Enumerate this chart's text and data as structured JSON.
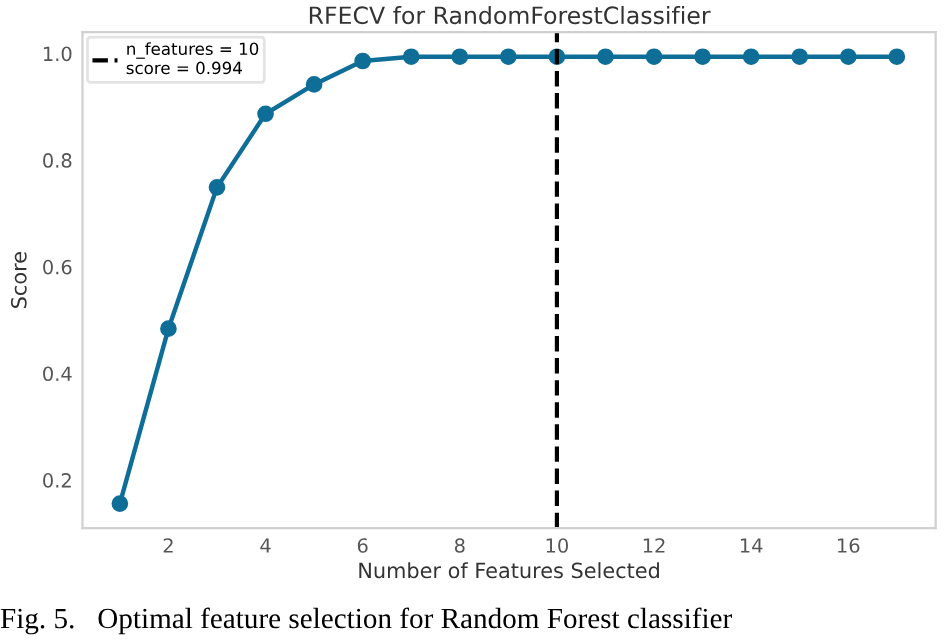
{
  "chart_data": {
    "type": "line",
    "title": "RFECV for RandomForestClassifier",
    "xlabel": "Number of Features Selected",
    "ylabel": "Score",
    "x": [
      1,
      2,
      3,
      4,
      5,
      6,
      7,
      8,
      9,
      10,
      11,
      12,
      13,
      14,
      15,
      16,
      17
    ],
    "series": [
      {
        "color": "#0e6e97",
        "values": [
          0.156,
          0.484,
          0.749,
          0.887,
          0.942,
          0.986,
          0.994,
          0.994,
          0.994,
          0.994,
          0.994,
          0.994,
          0.994,
          0.994,
          0.994,
          0.994,
          0.994
        ]
      }
    ],
    "marker": "circle",
    "line_style": "solid",
    "xlim": [
      0.23,
      17.8
    ],
    "ylim": [
      0.11,
      1.04
    ],
    "xticks": [
      2,
      4,
      6,
      8,
      10,
      12,
      14,
      16
    ],
    "yticks": [
      0.2,
      0.4,
      0.6,
      0.8,
      {
        "value": 1,
        "label": "1.0"
      }
    ],
    "ref_lines": [
      {
        "axis": "x",
        "value": 10,
        "label": "n_features = 10\nscore = 0.994",
        "color": "#000000",
        "line_style": "dashed"
      }
    ],
    "grid": false,
    "legend": "top left",
    "annotations": [
      "Fig. 5.   Optimal feature selection for Random Forest classifier"
    ]
  }
}
